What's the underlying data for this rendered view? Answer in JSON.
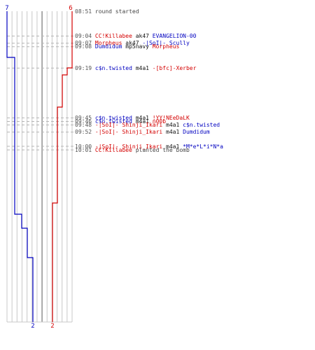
{
  "scale": {
    "blue_start": "7",
    "red_start": "6",
    "blue_end": "2",
    "red_end": "2"
  },
  "colors": {
    "blue": "#0000c0",
    "red": "#d40000",
    "grid": "#c8c8c8",
    "axis": "#888888",
    "dash": "#b4b4b4",
    "time": "#555555",
    "weapon": "#111111",
    "info": "#444444"
  },
  "events": [
    {
      "time": "08:51",
      "rows": 0,
      "parts": [
        {
          "text": "round started",
          "color": "info"
        }
      ]
    },
    {
      "time": "09:04",
      "rows": 7,
      "parts": [
        {
          "text": "CC!Killabee",
          "color": "red"
        },
        {
          "text": " ak47 ",
          "color": "weapon"
        },
        {
          "text": "EVANGELION-00",
          "color": "blue"
        }
      ]
    },
    {
      "time": "09:07",
      "rows": 9,
      "parts": [
        {
          "text": "Morpheus",
          "color": "red"
        },
        {
          "text": " ak47 ",
          "color": "weapon"
        },
        {
          "text": "-|SoI|- Scully",
          "color": "blue"
        }
      ]
    },
    {
      "time": "09:08",
      "rows": 10,
      "parts": [
        {
          "text": "Dumdidum",
          "color": "blue"
        },
        {
          "text": " mp5navy ",
          "color": "weapon"
        },
        {
          "text": "Morpheus",
          "color": "red"
        }
      ]
    },
    {
      "time": "09:19",
      "rows": 16,
      "parts": [
        {
          "text": "c$n.twisted",
          "color": "blue"
        },
        {
          "text": " m4a1 ",
          "color": "weapon"
        },
        {
          "text": "-[bfc]-Xerber",
          "color": "red"
        }
      ]
    },
    {
      "time": "09:45",
      "rows": 30,
      "parts": [
        {
          "text": "c$n.twisted",
          "color": "blue"
        },
        {
          "text": " m4a1 ",
          "color": "weapon"
        },
        {
          "text": "!YY!NEeDaLK",
          "color": "red"
        }
      ]
    },
    {
      "time": "09:46",
      "rows": 31,
      "parts": [
        {
          "text": "c$n.twisted",
          "color": "blue"
        },
        {
          "text": " m4a1 ",
          "color": "weapon"
        },
        {
          "text": "n00b",
          "color": "red"
        }
      ]
    },
    {
      "time": "09:48",
      "rows": 32,
      "parts": [
        {
          "text": "-|SoI|- Shinji_Ikari",
          "color": "red"
        },
        {
          "text": " m4a1 ",
          "color": "weapon"
        },
        {
          "text": "c$n.twisted",
          "color": "blue"
        }
      ]
    },
    {
      "time": "09:52",
      "rows": 34,
      "parts": [
        {
          "text": "-|SoI|- Shinji_Ikari",
          "color": "red"
        },
        {
          "text": " m4a1 ",
          "color": "weapon"
        },
        {
          "text": "Dumdidum",
          "color": "blue"
        }
      ]
    },
    {
      "time": "10:00",
      "rows": 38,
      "parts": [
        {
          "text": "-|SoI|- Shinji_Ikari",
          "color": "red"
        },
        {
          "text": " m4a1 ",
          "color": "weapon"
        },
        {
          "text": "*M*e*L*i*N*a",
          "color": "blue"
        }
      ]
    },
    {
      "time": "10:01",
      "rows": 39,
      "parts": [
        {
          "text": "CC!Killabee",
          "color": "red"
        },
        {
          "text": " planted the bomb",
          "color": "info"
        }
      ]
    }
  ],
  "steps": {
    "blue": [
      {
        "y": 82,
        "x": 21
      },
      {
        "y": 306,
        "x": 31
      },
      {
        "y": 326,
        "x": 39
      },
      {
        "y": 368,
        "x": 47
      }
    ],
    "red": [
      {
        "y": 97,
        "x": 96
      },
      {
        "y": 107,
        "x": 89
      },
      {
        "y": 153,
        "x": 82
      },
      {
        "y": 290,
        "x": 75
      }
    ]
  }
}
